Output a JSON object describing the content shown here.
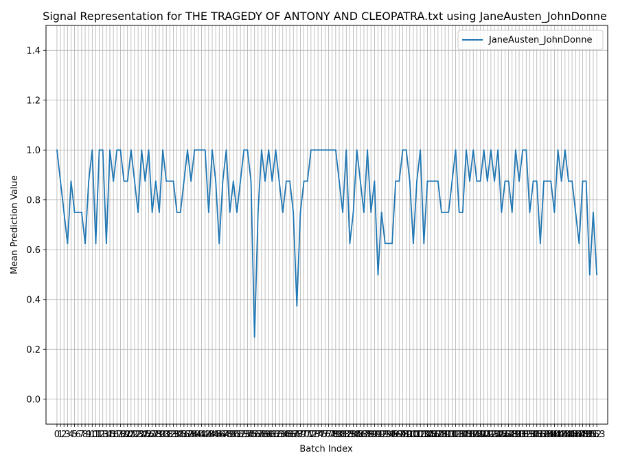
{
  "chart_data": {
    "type": "line",
    "title": "Signal Representation for THE TRAGEDY OF ANTONY AND CLEOPATRA.txt using JaneAusten_JohnDonne",
    "xlabel": "Batch Index",
    "ylabel": "Mean Prediction Value",
    "ylim": [
      -0.1,
      1.5
    ],
    "xlim": [
      -3.1,
      156.1
    ],
    "yticks": [
      0.0,
      0.2,
      0.4,
      0.6,
      0.8,
      1.0,
      1.2,
      1.4
    ],
    "grid": true,
    "legend": "upper right",
    "x": [
      0,
      1,
      2,
      3,
      4,
      5,
      6,
      7,
      8,
      9,
      10,
      11,
      12,
      13,
      14,
      15,
      16,
      17,
      18,
      19,
      20,
      21,
      22,
      23,
      24,
      25,
      26,
      27,
      28,
      29,
      30,
      31,
      32,
      33,
      34,
      35,
      36,
      37,
      38,
      39,
      40,
      41,
      42,
      43,
      44,
      45,
      46,
      47,
      48,
      49,
      50,
      51,
      52,
      53,
      54,
      55,
      56,
      57,
      58,
      59,
      60,
      61,
      62,
      63,
      64,
      65,
      66,
      67,
      68,
      69,
      70,
      71,
      72,
      73,
      74,
      75,
      76,
      77,
      78,
      79,
      80,
      81,
      82,
      83,
      84,
      85,
      86,
      87,
      88,
      89,
      90,
      91,
      92,
      93,
      94,
      95,
      96,
      97,
      98,
      99,
      100,
      101,
      102,
      103,
      104,
      105,
      106,
      107,
      108,
      109,
      110,
      111,
      112,
      113,
      114,
      115,
      116,
      117,
      118,
      119,
      120,
      121,
      122,
      123,
      124,
      125,
      126,
      127,
      128,
      129,
      130,
      131,
      132,
      133,
      134,
      135,
      136,
      137,
      138,
      139,
      140,
      141,
      142,
      143,
      144,
      145,
      146,
      147,
      148,
      149,
      150,
      151,
      152,
      153
    ],
    "series": [
      {
        "name": "JaneAusten_JohnDonne",
        "color": "#1f77b4",
        "values": [
          1.0,
          0.875,
          0.75,
          0.625,
          0.875,
          0.75,
          0.75,
          0.75,
          0.625,
          0.875,
          1.0,
          0.625,
          1.0,
          1.0,
          0.625,
          1.0,
          0.875,
          1.0,
          1.0,
          0.875,
          0.875,
          1.0,
          0.875,
          0.75,
          1.0,
          0.875,
          1.0,
          0.75,
          0.875,
          0.75,
          1.0,
          0.875,
          0.875,
          0.875,
          0.75,
          0.75,
          0.875,
          1.0,
          0.875,
          1.0,
          1.0,
          1.0,
          1.0,
          0.75,
          1.0,
          0.875,
          0.625,
          0.875,
          1.0,
          0.75,
          0.875,
          0.75,
          0.875,
          1.0,
          1.0,
          0.875,
          0.25,
          0.75,
          1.0,
          0.875,
          1.0,
          0.875,
          1.0,
          0.875,
          0.75,
          0.875,
          0.875,
          0.75,
          0.375,
          0.75,
          0.875,
          0.875,
          1.0,
          1.0,
          1.0,
          1.0,
          1.0,
          1.0,
          1.0,
          1.0,
          0.875,
          0.75,
          1.0,
          0.625,
          0.75,
          1.0,
          0.875,
          0.75,
          1.0,
          0.75,
          0.875,
          0.5,
          0.75,
          0.625,
          0.625,
          0.625,
          0.875,
          0.875,
          1.0,
          1.0,
          0.875,
          0.625,
          0.875,
          1.0,
          0.625,
          0.875,
          0.875,
          0.875,
          0.875,
          0.75,
          0.75,
          0.75,
          0.875,
          1.0,
          0.75,
          0.75,
          1.0,
          0.875,
          1.0,
          0.875,
          0.875,
          1.0,
          0.875,
          1.0,
          0.875,
          1.0,
          0.75,
          0.875,
          0.875,
          0.75,
          1.0,
          0.875,
          1.0,
          1.0,
          0.75,
          0.875,
          0.875,
          0.625,
          0.875,
          0.875,
          0.875,
          0.75,
          1.0,
          0.875,
          1.0,
          0.875,
          0.875,
          0.75,
          0.625,
          0.875,
          0.875,
          0.5,
          0.75,
          0.5
        ]
      }
    ]
  }
}
